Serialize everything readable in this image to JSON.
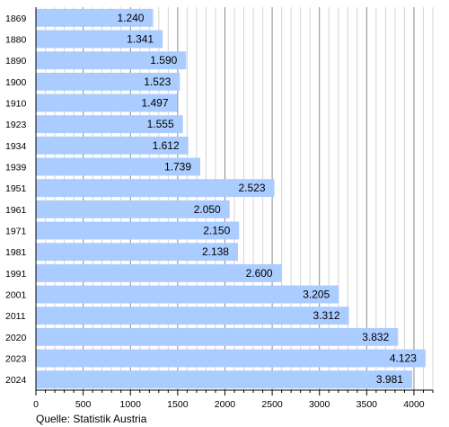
{
  "chart_data": {
    "type": "bar",
    "orientation": "horizontal",
    "categories": [
      "1869",
      "1880",
      "1890",
      "1900",
      "1910",
      "1923",
      "1934",
      "1939",
      "1951",
      "1961",
      "1971",
      "1981",
      "1991",
      "2001",
      "2011",
      "2020",
      "2023",
      "2024"
    ],
    "values": [
      1240,
      1341,
      1590,
      1523,
      1497,
      1555,
      1612,
      1739,
      2523,
      2050,
      2150,
      2138,
      2600,
      3205,
      3312,
      3832,
      4123,
      3981
    ],
    "value_labels": [
      "1.240",
      "1.341",
      "1.590",
      "1.523",
      "1.497",
      "1.555",
      "1.612",
      "1.739",
      "2.523",
      "2.050",
      "2.150",
      "2.138",
      "2.600",
      "3.205",
      "3.312",
      "3.832",
      "4.123",
      "3.981"
    ],
    "x_ticks": [
      0,
      500,
      1000,
      1500,
      2000,
      2500,
      3000,
      3500,
      4000
    ],
    "xlim": [
      0,
      4200
    ],
    "grid": true,
    "bar_color": "#aaccff",
    "title": "",
    "xlabel": "",
    "ylabel": ""
  },
  "source": "Quelle: Statistik Austria"
}
